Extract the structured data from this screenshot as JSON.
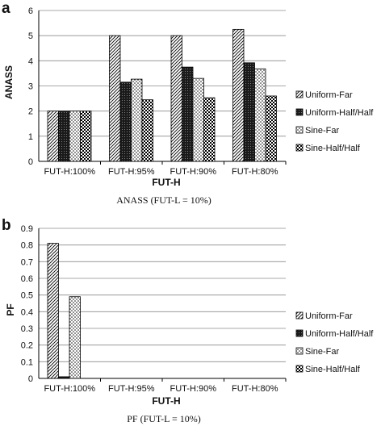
{
  "colors": {
    "ink": "#000000",
    "grid": "#8c8c8c",
    "background": "#ffffff"
  },
  "chart_data": [
    {
      "type": "bar",
      "panel_label": "a",
      "caption": "ANASS (FUT-L = 10%)",
      "xlabel": "FUT-H",
      "ylabel": "ANASS",
      "categories": [
        "FUT-H:100%",
        "FUT-H:95%",
        "FUT-H:90%",
        "FUT-H:80%"
      ],
      "ylim": [
        0,
        6
      ],
      "yticks": [
        "0",
        "1",
        "2",
        "3",
        "4",
        "5",
        "6"
      ],
      "grid": true,
      "legend_position": "right",
      "series": [
        {
          "name": "Uniform-Far",
          "pattern": "diagonal-hatch",
          "values": [
            2.0,
            5.0,
            5.0,
            5.25
          ]
        },
        {
          "name": "Uniform-Half/Half",
          "pattern": "dense-dark",
          "values": [
            2.0,
            3.15,
            3.75,
            3.92
          ]
        },
        {
          "name": "Sine-Far",
          "pattern": "dots",
          "values": [
            2.0,
            3.27,
            3.3,
            3.68
          ]
        },
        {
          "name": "Sine-Half/Half",
          "pattern": "checker",
          "values": [
            2.0,
            2.45,
            2.53,
            2.6
          ]
        }
      ]
    },
    {
      "type": "bar",
      "panel_label": "b",
      "caption": "PF (FUT-L = 10%)",
      "xlabel": "FUT-H",
      "ylabel": "PF",
      "categories": [
        "FUT-H:100%",
        "FUT-H:95%",
        "FUT-H:90%",
        "FUT-H:80%"
      ],
      "ylim": [
        0,
        0.9
      ],
      "yticks": [
        "0",
        "0.1",
        "0.2",
        "0.3",
        "0.4",
        "0.5",
        "0.6",
        "0.7",
        "0.8",
        "0.9"
      ],
      "grid": true,
      "legend_position": "right",
      "series": [
        {
          "name": "Uniform-Far",
          "pattern": "diagonal-hatch",
          "values": [
            0.81,
            0,
            0,
            0
          ]
        },
        {
          "name": "Uniform-Half/Half",
          "pattern": "dense-dark",
          "values": [
            0.01,
            0,
            0,
            0
          ]
        },
        {
          "name": "Sine-Far",
          "pattern": "dots",
          "values": [
            0.49,
            0,
            0,
            0
          ]
        },
        {
          "name": "Sine-Half/Half",
          "pattern": "checker",
          "values": [
            0,
            0,
            0,
            0
          ]
        }
      ]
    }
  ]
}
